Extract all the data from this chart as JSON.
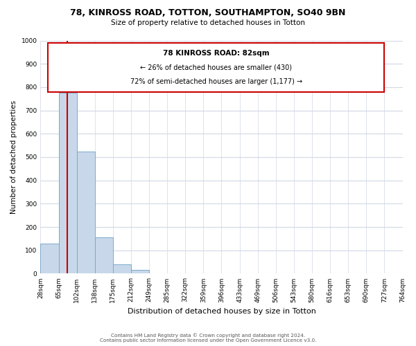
{
  "title": "78, KINROSS ROAD, TOTTON, SOUTHAMPTON, SO40 9BN",
  "subtitle": "Size of property relative to detached houses in Totton",
  "xlabel": "Distribution of detached houses by size in Totton",
  "ylabel": "Number of detached properties",
  "footer_line1": "Contains HM Land Registry data © Crown copyright and database right 2024.",
  "footer_line2": "Contains public sector information licensed under the Open Government Licence v3.0.",
  "bin_labels": [
    "28sqm",
    "65sqm",
    "102sqm",
    "138sqm",
    "175sqm",
    "212sqm",
    "249sqm",
    "285sqm",
    "322sqm",
    "359sqm",
    "396sqm",
    "433sqm",
    "469sqm",
    "506sqm",
    "543sqm",
    "580sqm",
    "616sqm",
    "653sqm",
    "690sqm",
    "727sqm",
    "764sqm"
  ],
  "bar_values": [
    130,
    775,
    525,
    155,
    40,
    15,
    0,
    0,
    0,
    0,
    0,
    0,
    0,
    0,
    0,
    0,
    0,
    0,
    0,
    0
  ],
  "bar_color": "#c8d8ea",
  "bar_edge_color": "#7aaac8",
  "vline_color": "#cc0000",
  "annotation_title": "78 KINROSS ROAD: 82sqm",
  "annotation_line1": "← 26% of detached houses are smaller (430)",
  "annotation_line2": "72% of semi-detached houses are larger (1,177) →",
  "annotation_box_color": "#ffffff",
  "annotation_border_color": "#cc0000",
  "ylim": [
    0,
    1000
  ],
  "yticks": [
    0,
    100,
    200,
    300,
    400,
    500,
    600,
    700,
    800,
    900,
    1000
  ],
  "background_color": "#ffffff",
  "grid_color": "#d0d8e4"
}
